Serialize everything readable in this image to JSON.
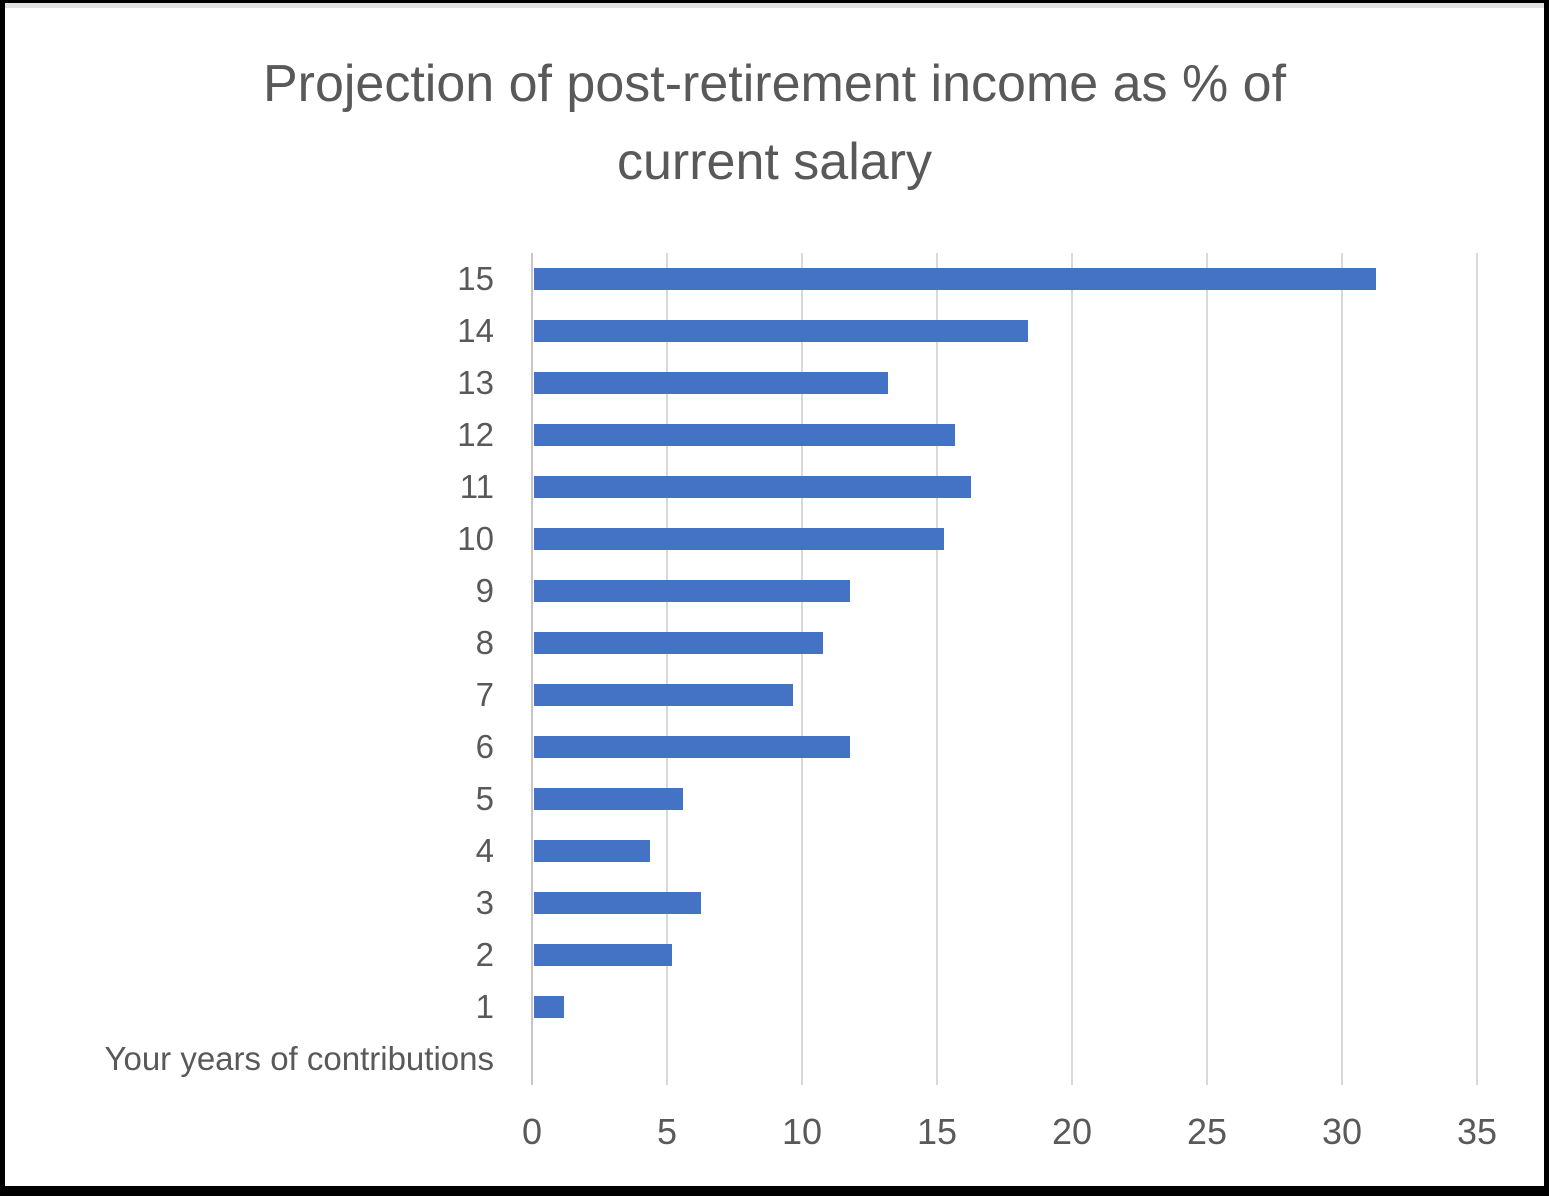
{
  "chart_data": {
    "type": "bar",
    "orientation": "horizontal",
    "title": "Projection of post-retirement income as % of current salary",
    "title_lines": [
      "Projection of post-retirement income as % of",
      "current salary"
    ],
    "categories": [
      "15",
      "14",
      "13",
      "12",
      "11",
      "10",
      "9",
      "8",
      "7",
      "6",
      "5",
      "4",
      "3",
      "2",
      "1"
    ],
    "values": [
      31.2,
      18.3,
      13.1,
      15.6,
      16.2,
      15.2,
      11.7,
      10.7,
      9.6,
      11.7,
      5.5,
      4.3,
      6.2,
      5.1,
      1.1
    ],
    "category_axis_label": "Your years of contributions",
    "x_ticks": [
      0,
      5,
      10,
      15,
      20,
      25,
      30,
      35
    ],
    "xlim": [
      0,
      35
    ],
    "grid": true,
    "legend": "none",
    "bar_color": "#4472C4",
    "text_color": "#595959",
    "gridline_color": "#D9D9D9"
  }
}
